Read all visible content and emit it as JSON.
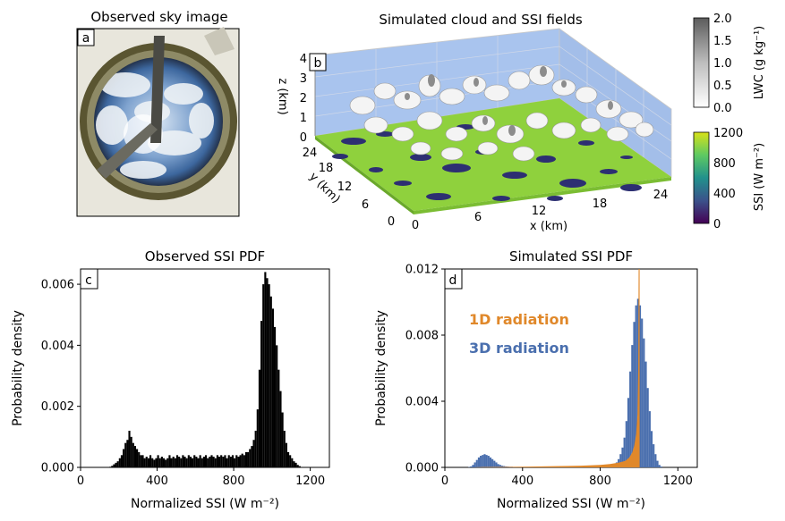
{
  "panels": {
    "a": {
      "letter": "a",
      "title": "Observed sky image"
    },
    "b": {
      "letter": "b",
      "title": "Simulated cloud and SSI fields",
      "xlabel": "x (km)",
      "ylabel": "y (km)",
      "zlabel": "z (km)",
      "x_ticks": [
        "0",
        "6",
        "12",
        "18",
        "24"
      ],
      "y_ticks": [
        "0",
        "6",
        "12",
        "18",
        "24"
      ],
      "z_ticks": [
        "0",
        "1",
        "2",
        "3",
        "4"
      ],
      "lwc_colorbar": {
        "label": "LWC (g kg⁻¹)",
        "ticks": [
          "0.0",
          "0.5",
          "1.0",
          "1.5",
          "2.0"
        ],
        "range": [
          0,
          2
        ]
      },
      "ssi_colorbar": {
        "label": "SSI (W m⁻²)",
        "ticks": [
          "0",
          "400",
          "800",
          "1200"
        ],
        "range": [
          0,
          1200
        ]
      },
      "colors": {
        "sky_wall": "#a9c4ee",
        "ground": "#8fd13d",
        "shadow": "#2d2f72",
        "cloud": "#e6e6e6"
      }
    }
  },
  "chart_data": [
    {
      "type": "bar",
      "panel": "c",
      "title": "Observed SSI PDF",
      "xlabel": "Normalized SSI (W m⁻²)",
      "ylabel": "Probability density",
      "xlim": [
        0,
        1300
      ],
      "ylim": [
        0,
        0.0065
      ],
      "x_ticks": [
        0,
        400,
        800,
        1200
      ],
      "y_ticks": [
        0.0,
        0.002,
        0.004,
        0.006
      ],
      "y_tick_labels": [
        "0.000",
        "0.002",
        "0.004",
        "0.006"
      ],
      "bin_start": 150,
      "bin_width": 10,
      "values": [
        2e-05,
        5e-05,
        0.0001,
        0.00015,
        0.0002,
        0.0003,
        0.0004,
        0.0006,
        0.0008,
        0.0009,
        0.0012,
        0.001,
        0.0008,
        0.0007,
        0.0006,
        0.0005,
        0.0004,
        0.0004,
        0.0003,
        0.00035,
        0.0003,
        0.0004,
        0.0003,
        0.00025,
        0.0003,
        0.0004,
        0.0003,
        0.00035,
        0.0003,
        0.00025,
        0.0003,
        0.0004,
        0.0003,
        0.00035,
        0.0003,
        0.0004,
        0.00035,
        0.0003,
        0.0004,
        0.00035,
        0.0003,
        0.0004,
        0.00035,
        0.0003,
        0.0004,
        0.00035,
        0.0003,
        0.0004,
        0.0003,
        0.00035,
        0.0004,
        0.0003,
        0.00035,
        0.0004,
        0.00035,
        0.0003,
        0.0004,
        0.00035,
        0.0004,
        0.00035,
        0.0004,
        0.0003,
        0.0004,
        0.00035,
        0.0004,
        0.0003,
        0.0004,
        0.00035,
        0.0004,
        0.00045,
        0.0004,
        0.0005,
        0.0005,
        0.0006,
        0.0007,
        0.0009,
        0.0012,
        0.0019,
        0.0032,
        0.0048,
        0.006,
        0.0064,
        0.0062,
        0.006,
        0.0056,
        0.0052,
        0.0046,
        0.004,
        0.0032,
        0.0025,
        0.0018,
        0.0012,
        0.0008,
        0.0005,
        0.0004,
        0.0003,
        0.0002,
        0.00015,
        8e-05,
        4e-05
      ],
      "color": "#000000"
    },
    {
      "type": "bar",
      "panel": "d",
      "title": "Simulated SSI PDF",
      "xlabel": "Normalized SSI (W m⁻²)",
      "ylabel": "Probability density",
      "xlim": [
        0,
        1300
      ],
      "ylim": [
        0,
        0.012
      ],
      "x_ticks": [
        0,
        400,
        800,
        1200
      ],
      "y_ticks": [
        0.0,
        0.004,
        0.008,
        0.012
      ],
      "y_tick_labels": [
        "0.000",
        "0.004",
        "0.008",
        "0.012"
      ],
      "legend_placement": "center-left (text labels)",
      "series": [
        {
          "name": "3D radiation",
          "color": "#4a6fae",
          "bin_start": 120,
          "bin_width": 10,
          "values": [
            2e-05,
            6e-05,
            0.00015,
            0.0003,
            0.00045,
            0.0006,
            0.0007,
            0.00075,
            0.0008,
            0.00075,
            0.0007,
            0.0006,
            0.0005,
            0.0004,
            0.0003,
            0.0002,
            0.00015,
            0.0001,
            8e-05,
            6e-05,
            5e-05,
            4e-05,
            4e-05,
            3e-05,
            3e-05,
            3e-05,
            3e-05,
            3e-05,
            3e-05,
            3e-05,
            3e-05,
            3e-05,
            3e-05,
            3e-05,
            3e-05,
            3e-05,
            3e-05,
            3e-05,
            3e-05,
            3e-05,
            3e-05,
            3e-05,
            3e-05,
            3e-05,
            3e-05,
            3e-05,
            3e-05,
            3e-05,
            3e-05,
            3e-05,
            3e-05,
            3e-05,
            3e-05,
            3e-05,
            3e-05,
            3e-05,
            3e-05,
            3e-05,
            3e-05,
            3e-05,
            3e-05,
            3e-05,
            3e-05,
            3e-05,
            3e-05,
            3e-05,
            3e-05,
            3e-05,
            3e-05,
            4e-05,
            5e-05,
            6e-05,
            8e-05,
            0.0001,
            0.00015,
            0.0002,
            0.0003,
            0.0005,
            0.0008,
            0.0012,
            0.0018,
            0.0028,
            0.0042,
            0.0058,
            0.0074,
            0.0088,
            0.0098,
            0.0102,
            0.0098,
            0.009,
            0.0078,
            0.0064,
            0.0048,
            0.0034,
            0.0022,
            0.0014,
            0.0008,
            0.0004,
            0.00015,
            5e-05
          ],
          "mark": "filled histogram"
        },
        {
          "name": "1D radiation",
          "color": "#e0882a",
          "x": [
            160,
            200,
            300,
            400,
            500,
            600,
            700,
            800,
            850,
            900,
            930,
            950,
            965,
            975,
            985,
            992,
            996,
            998,
            1000
          ],
          "y": [
            1e-05,
            2e-05,
            3e-05,
            4e-05,
            6e-05,
            8e-05,
            0.0001,
            0.00015,
            0.0002,
            0.0003,
            0.0004,
            0.0006,
            0.0009,
            0.0013,
            0.002,
            0.0032,
            0.006,
            0.012,
            0.012
          ],
          "mark": "filled area with vertical spike at 1000"
        }
      ]
    }
  ]
}
